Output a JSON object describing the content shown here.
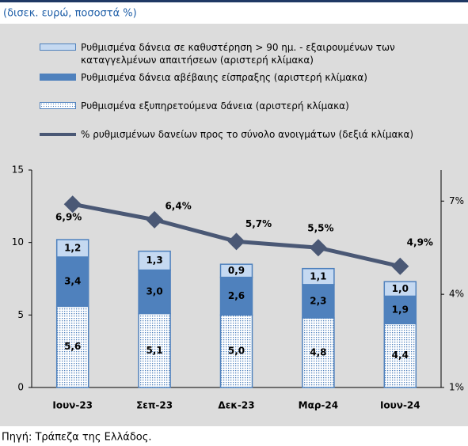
{
  "chart_data": {
    "type": "stacked-bar-line",
    "subtitle": "(δισεκ. ευρώ, ποσοστά %)",
    "source": "Πηγή: Τράπεζα της Ελλάδος.",
    "categories": [
      "Ιουν-23",
      "Σεπ-23",
      "Δεκ-23",
      "Μαρ-24",
      "Ιουν-24"
    ],
    "series": [
      {
        "name": "Ρυθμισμένα εξυπηρετούμενα δάνεια (αριστερή κλίμακα)",
        "color": "#4f81bd",
        "pattern": "dots",
        "values": [
          5.6,
          5.1,
          5.0,
          4.8,
          4.4
        ],
        "value_labels": [
          "5,6",
          "5,1",
          "5,0",
          "4,8",
          "4,4"
        ]
      },
      {
        "name": "Ρυθμισμένα δάνεια αβέβαιης είσπραξης (αριστερή κλίμακα)",
        "color": "#4f81bd",
        "values": [
          3.4,
          3.0,
          2.6,
          2.3,
          1.9
        ],
        "value_labels": [
          "3,4",
          "3,0",
          "2,6",
          "2,3",
          "1,9"
        ]
      },
      {
        "name": "Ρυθμισμένα δάνεια σε καθυστέρηση > 90 ημ. - εξαιρουμένων των καταγγελμένων απαιτήσεων (αριστερή κλίμακα)",
        "color": "#c5d9f1",
        "values": [
          1.2,
          1.3,
          0.9,
          1.1,
          1.0
        ],
        "value_labels": [
          "1,2",
          "1,3",
          "0,9",
          "1,1",
          "1,0"
        ]
      },
      {
        "name": "% ρυθμισμένων δανείων προς το σύνολο ανοιγμάτων (δεξιά κλίμακα)",
        "color": "#4a5875",
        "axis": "y2",
        "kind": "line",
        "values": [
          6.9,
          6.4,
          5.7,
          5.5,
          4.9
        ],
        "value_labels": [
          "6,9%",
          "6,4%",
          "5,7%",
          "5,5%",
          "4,9%"
        ]
      }
    ],
    "ylim": [
      0,
      15
    ],
    "yticks": [
      0,
      5,
      10,
      15
    ],
    "y2lim": [
      1,
      8
    ],
    "y2ticks": [
      {
        "value": 1,
        "label": "1%"
      },
      {
        "value": 4,
        "label": "4%"
      },
      {
        "value": 7,
        "label": "7%"
      }
    ]
  }
}
